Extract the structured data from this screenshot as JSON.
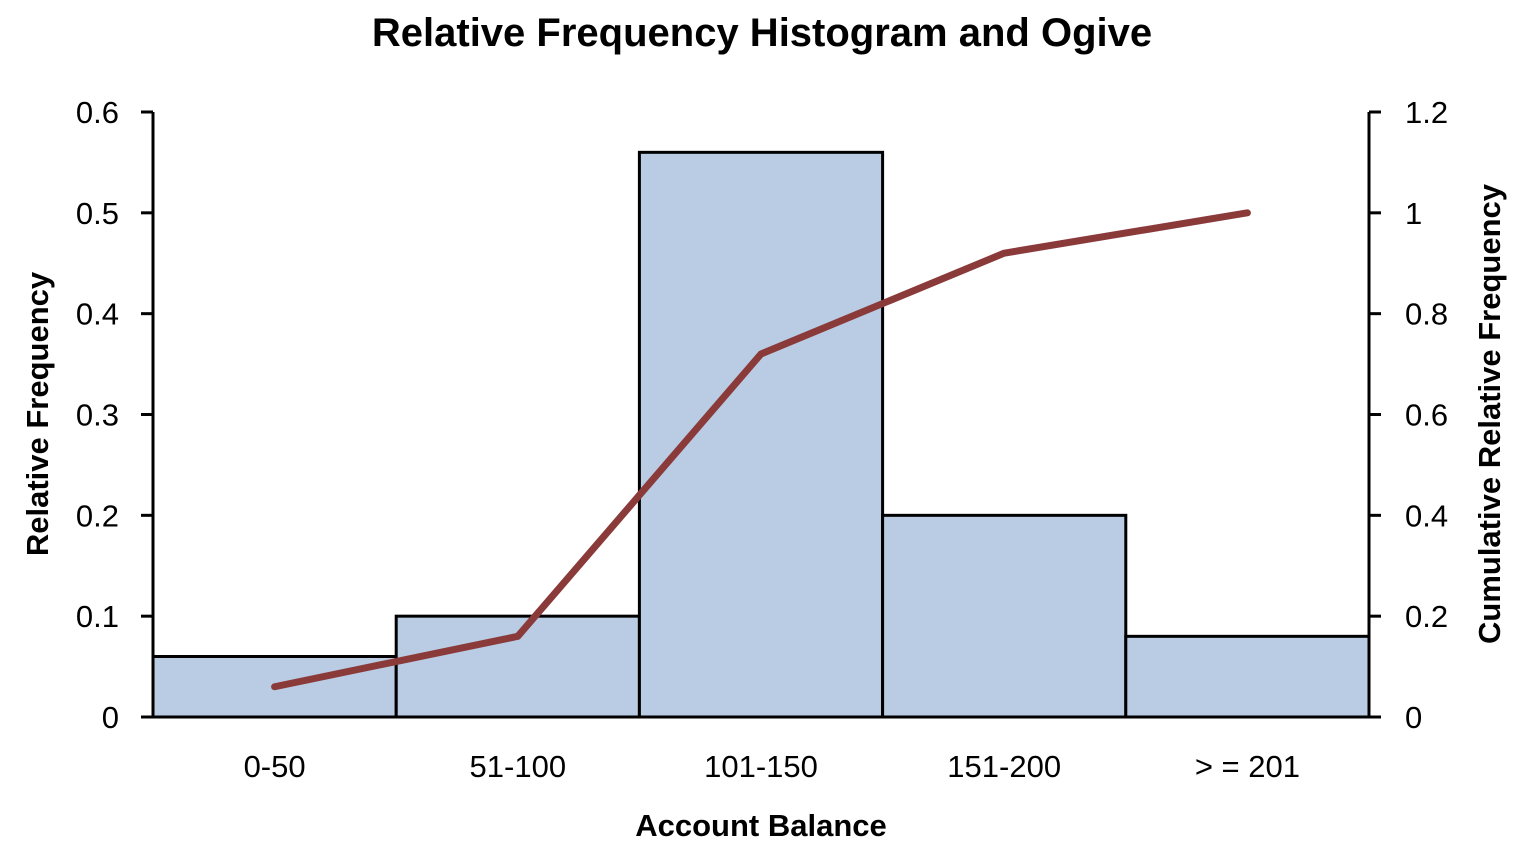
{
  "chart_data": {
    "type": "bar",
    "title": "Relative Frequency Histogram and Ogive",
    "xlabel": "Account Balance",
    "ylabel": "Relative Frequency",
    "y2label": "Cumulative Relative Frequency",
    "categories": [
      "0-50",
      "51-100",
      "101-150",
      "151-200",
      "> = 201"
    ],
    "ylim": [
      0,
      0.6
    ],
    "y_ticks": [
      "0",
      "0.1",
      "0.2",
      "0.3",
      "0.4",
      "0.5",
      "0.6"
    ],
    "y2lim": [
      0,
      1.2
    ],
    "y2_ticks": [
      "0",
      "0.2",
      "0.4",
      "0.6",
      "0.8",
      "1",
      "1.2"
    ],
    "grid": false,
    "legend": "none",
    "series": [
      {
        "type": "bar",
        "axis": "left",
        "values": [
          0.06,
          0.1,
          0.56,
          0.2,
          0.08
        ],
        "color": "#b9cce4"
      },
      {
        "type": "line",
        "axis": "right",
        "values": [
          0.06,
          0.16,
          0.72,
          0.92,
          1.0
        ],
        "color": "#8b3a3a"
      }
    ]
  }
}
